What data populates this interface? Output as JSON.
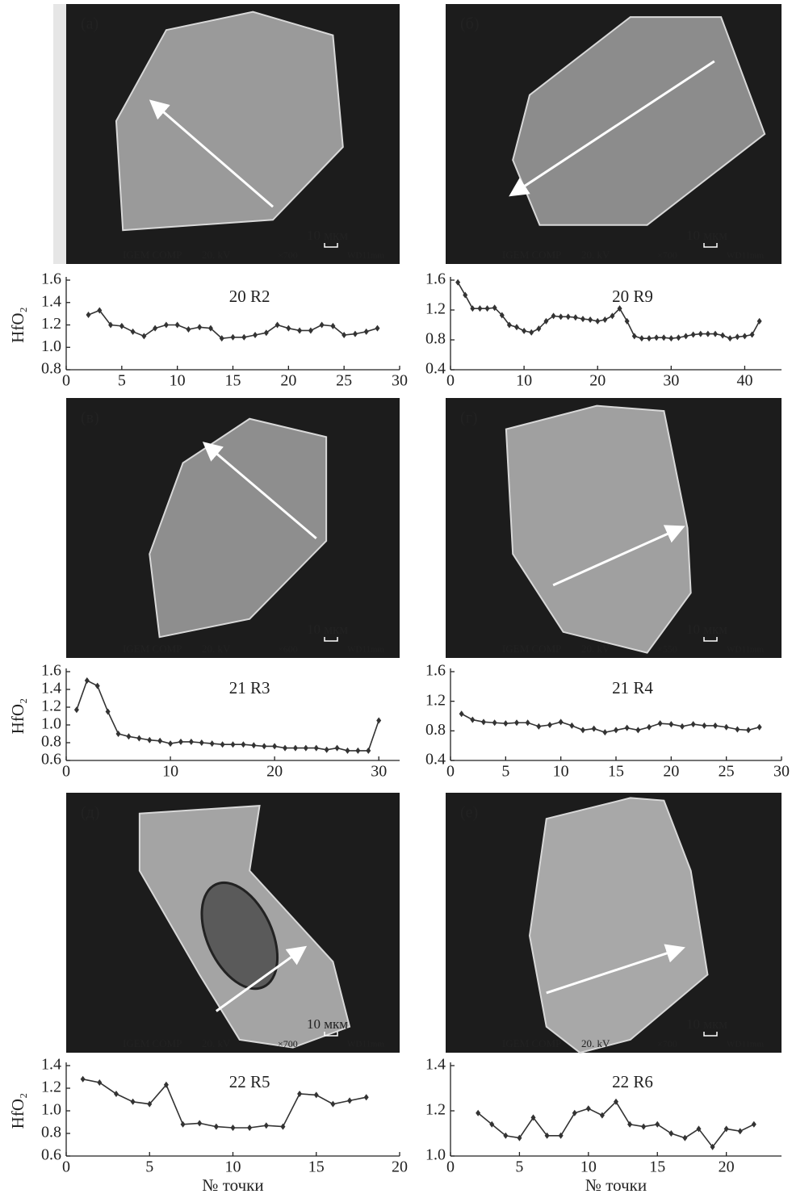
{
  "panels": [
    {
      "label": "(а)",
      "detector": "IGEM COMP",
      "voltage": "20. kV",
      "magnification": "×700",
      "scale": "10 мкм",
      "wd": "WD11mm"
    },
    {
      "label": "(б)",
      "detector": "IGEM COMP",
      "voltage": "20. kV",
      "magnification": "×700",
      "scale": "10 мкм",
      "wd": "WD11mm"
    },
    {
      "label": "(в)",
      "detector": "IGEM COMP",
      "voltage": "20. kV",
      "magnification": "×600",
      "scale": "10 мкм",
      "wd": "WD11mm"
    },
    {
      "label": "(г)",
      "detector": "IGEM COMP",
      "voltage": "20. kV",
      "magnification": "×550",
      "scale": "10 мкм",
      "wd": "WD11mm"
    },
    {
      "label": "(д)",
      "detector": "IGEM COMP",
      "voltage": "20. kV",
      "magnification": "×700",
      "scale": "10 мкм",
      "wd": "WD11mm"
    },
    {
      "label": "(е)",
      "detector": "IGEM COMP",
      "voltage": "20. kV",
      "magnification": "×700",
      "scale": "10 мкм",
      "wd": "WD11mm"
    }
  ],
  "chart_data": [
    {
      "type": "line",
      "title": "20 R2",
      "ylabel": "HfO₂",
      "color": "#333333",
      "x": [
        2,
        3,
        4,
        5,
        6,
        7,
        8,
        9,
        10,
        11,
        12,
        13,
        14,
        15,
        16,
        17,
        18,
        19,
        20,
        21,
        22,
        23,
        24,
        25,
        26,
        27,
        28
      ],
      "values": [
        1.29,
        1.33,
        1.2,
        1.19,
        1.14,
        1.1,
        1.17,
        1.2,
        1.2,
        1.16,
        1.18,
        1.17,
        1.08,
        1.09,
        1.09,
        1.11,
        1.13,
        1.2,
        1.17,
        1.15,
        1.15,
        1.2,
        1.19,
        1.11,
        1.12,
        1.14,
        1.17
      ],
      "xlim": [
        0,
        30
      ],
      "xticks": [
        0,
        5,
        10,
        15,
        20,
        25,
        30
      ],
      "ylim": [
        0.8,
        1.6
      ],
      "yticks": [
        0.8,
        {
          "value": 1,
          "label": "1.0"
        },
        1.2,
        1.4,
        1.6
      ]
    },
    {
      "type": "line",
      "title": "20 R9",
      "color": "#333333",
      "x": [
        1,
        2,
        3,
        4,
        5,
        6,
        7,
        8,
        9,
        10,
        11,
        12,
        13,
        14,
        15,
        16,
        17,
        18,
        19,
        20,
        21,
        22,
        23,
        24,
        25,
        26,
        27,
        28,
        29,
        30,
        31,
        32,
        33,
        34,
        35,
        36,
        37,
        38,
        39,
        40,
        41,
        42
      ],
      "values": [
        1.57,
        1.4,
        1.22,
        1.22,
        1.22,
        1.23,
        1.13,
        1.0,
        0.97,
        0.92,
        0.9,
        0.95,
        1.05,
        1.12,
        1.11,
        1.11,
        1.1,
        1.08,
        1.07,
        1.05,
        1.07,
        1.12,
        1.22,
        1.05,
        0.85,
        0.82,
        0.82,
        0.83,
        0.83,
        0.82,
        0.83,
        0.85,
        0.87,
        0.88,
        0.88,
        0.88,
        0.86,
        0.82,
        0.84,
        0.85,
        0.87,
        1.05
      ],
      "xlim": [
        0,
        45
      ],
      "xticks": [
        0,
        10,
        20,
        30,
        40
      ],
      "ylim": [
        0.4,
        1.6
      ],
      "yticks": [
        0.4,
        0.8,
        1.2,
        1.6
      ]
    },
    {
      "type": "line",
      "title": "21 R3",
      "ylabel": "HfO₂",
      "color": "#333333",
      "x": [
        1,
        2,
        3,
        4,
        5,
        6,
        7,
        8,
        9,
        10,
        11,
        12,
        13,
        14,
        15,
        16,
        17,
        18,
        19,
        20,
        21,
        22,
        23,
        24,
        25,
        26,
        27,
        28,
        29,
        30
      ],
      "values": [
        1.17,
        1.5,
        1.44,
        1.15,
        0.9,
        0.87,
        0.85,
        0.83,
        0.82,
        0.79,
        0.81,
        0.81,
        0.8,
        0.79,
        0.78,
        0.78,
        0.78,
        0.77,
        0.76,
        0.76,
        0.74,
        0.74,
        0.74,
        0.74,
        0.72,
        0.74,
        0.71,
        0.71,
        0.71,
        1.05
      ],
      "xlim": [
        0,
        32
      ],
      "xticks": [
        0,
        10,
        20,
        30
      ],
      "ylim": [
        0.6,
        1.6
      ],
      "yticks": [
        0.6,
        0.8,
        {
          "value": 1,
          "label": "1.0"
        },
        1.2,
        1.4,
        1.6
      ]
    },
    {
      "type": "line",
      "title": "21 R4",
      "color": "#333333",
      "x": [
        1,
        2,
        3,
        4,
        5,
        6,
        7,
        8,
        9,
        10,
        11,
        12,
        13,
        14,
        15,
        16,
        17,
        18,
        19,
        20,
        21,
        22,
        23,
        24,
        25,
        26,
        27,
        28
      ],
      "values": [
        1.03,
        0.95,
        0.92,
        0.91,
        0.9,
        0.91,
        0.91,
        0.86,
        0.88,
        0.92,
        0.87,
        0.81,
        0.83,
        0.78,
        0.81,
        0.84,
        0.81,
        0.85,
        0.9,
        0.89,
        0.86,
        0.89,
        0.87,
        0.87,
        0.85,
        0.82,
        0.81,
        0.85
      ],
      "xlim": [
        0,
        30
      ],
      "xticks": [
        0,
        5,
        10,
        15,
        20,
        25,
        30
      ],
      "ylim": [
        0.4,
        1.6
      ],
      "yticks": [
        0.4,
        0.8,
        1.2,
        1.6
      ]
    },
    {
      "type": "line",
      "title": "22 R5",
      "ylabel": "HfO₂",
      "xlabel": "№ точки",
      "color": "#333333",
      "x": [
        1,
        2,
        3,
        4,
        5,
        6,
        7,
        8,
        9,
        10,
        11,
        12,
        13,
        14,
        15,
        16,
        17,
        18
      ],
      "values": [
        1.28,
        1.25,
        1.15,
        1.08,
        1.06,
        1.23,
        0.88,
        0.89,
        0.86,
        0.85,
        0.85,
        0.87,
        0.86,
        1.15,
        1.14,
        1.06,
        1.09,
        1.12
      ],
      "xlim": [
        0,
        20
      ],
      "xticks": [
        0,
        5,
        10,
        15,
        20
      ],
      "ylim": [
        0.6,
        1.4
      ],
      "yticks": [
        0.6,
        0.8,
        {
          "value": 1,
          "label": "1.0"
        },
        1.2,
        1.4
      ]
    },
    {
      "type": "line",
      "title": "22 R6",
      "xlabel": "№ точки",
      "color": "#333333",
      "x": [
        2,
        3,
        4,
        5,
        6,
        7,
        8,
        9,
        10,
        11,
        12,
        13,
        14,
        15,
        16,
        17,
        18,
        19,
        20,
        21,
        22
      ],
      "values": [
        1.19,
        1.14,
        1.09,
        1.08,
        1.17,
        1.09,
        1.09,
        1.19,
        1.21,
        1.18,
        1.24,
        1.14,
        1.13,
        1.14,
        1.1,
        1.08,
        1.12,
        1.04,
        1.12,
        1.11,
        1.14
      ],
      "xlim": [
        0,
        24
      ],
      "xticks": [
        0,
        5,
        10,
        15,
        20
      ],
      "ylim": [
        1,
        1.4
      ],
      "yticks": [
        {
          "value": 1,
          "label": "1.0"
        },
        1.2,
        1.4
      ]
    }
  ]
}
